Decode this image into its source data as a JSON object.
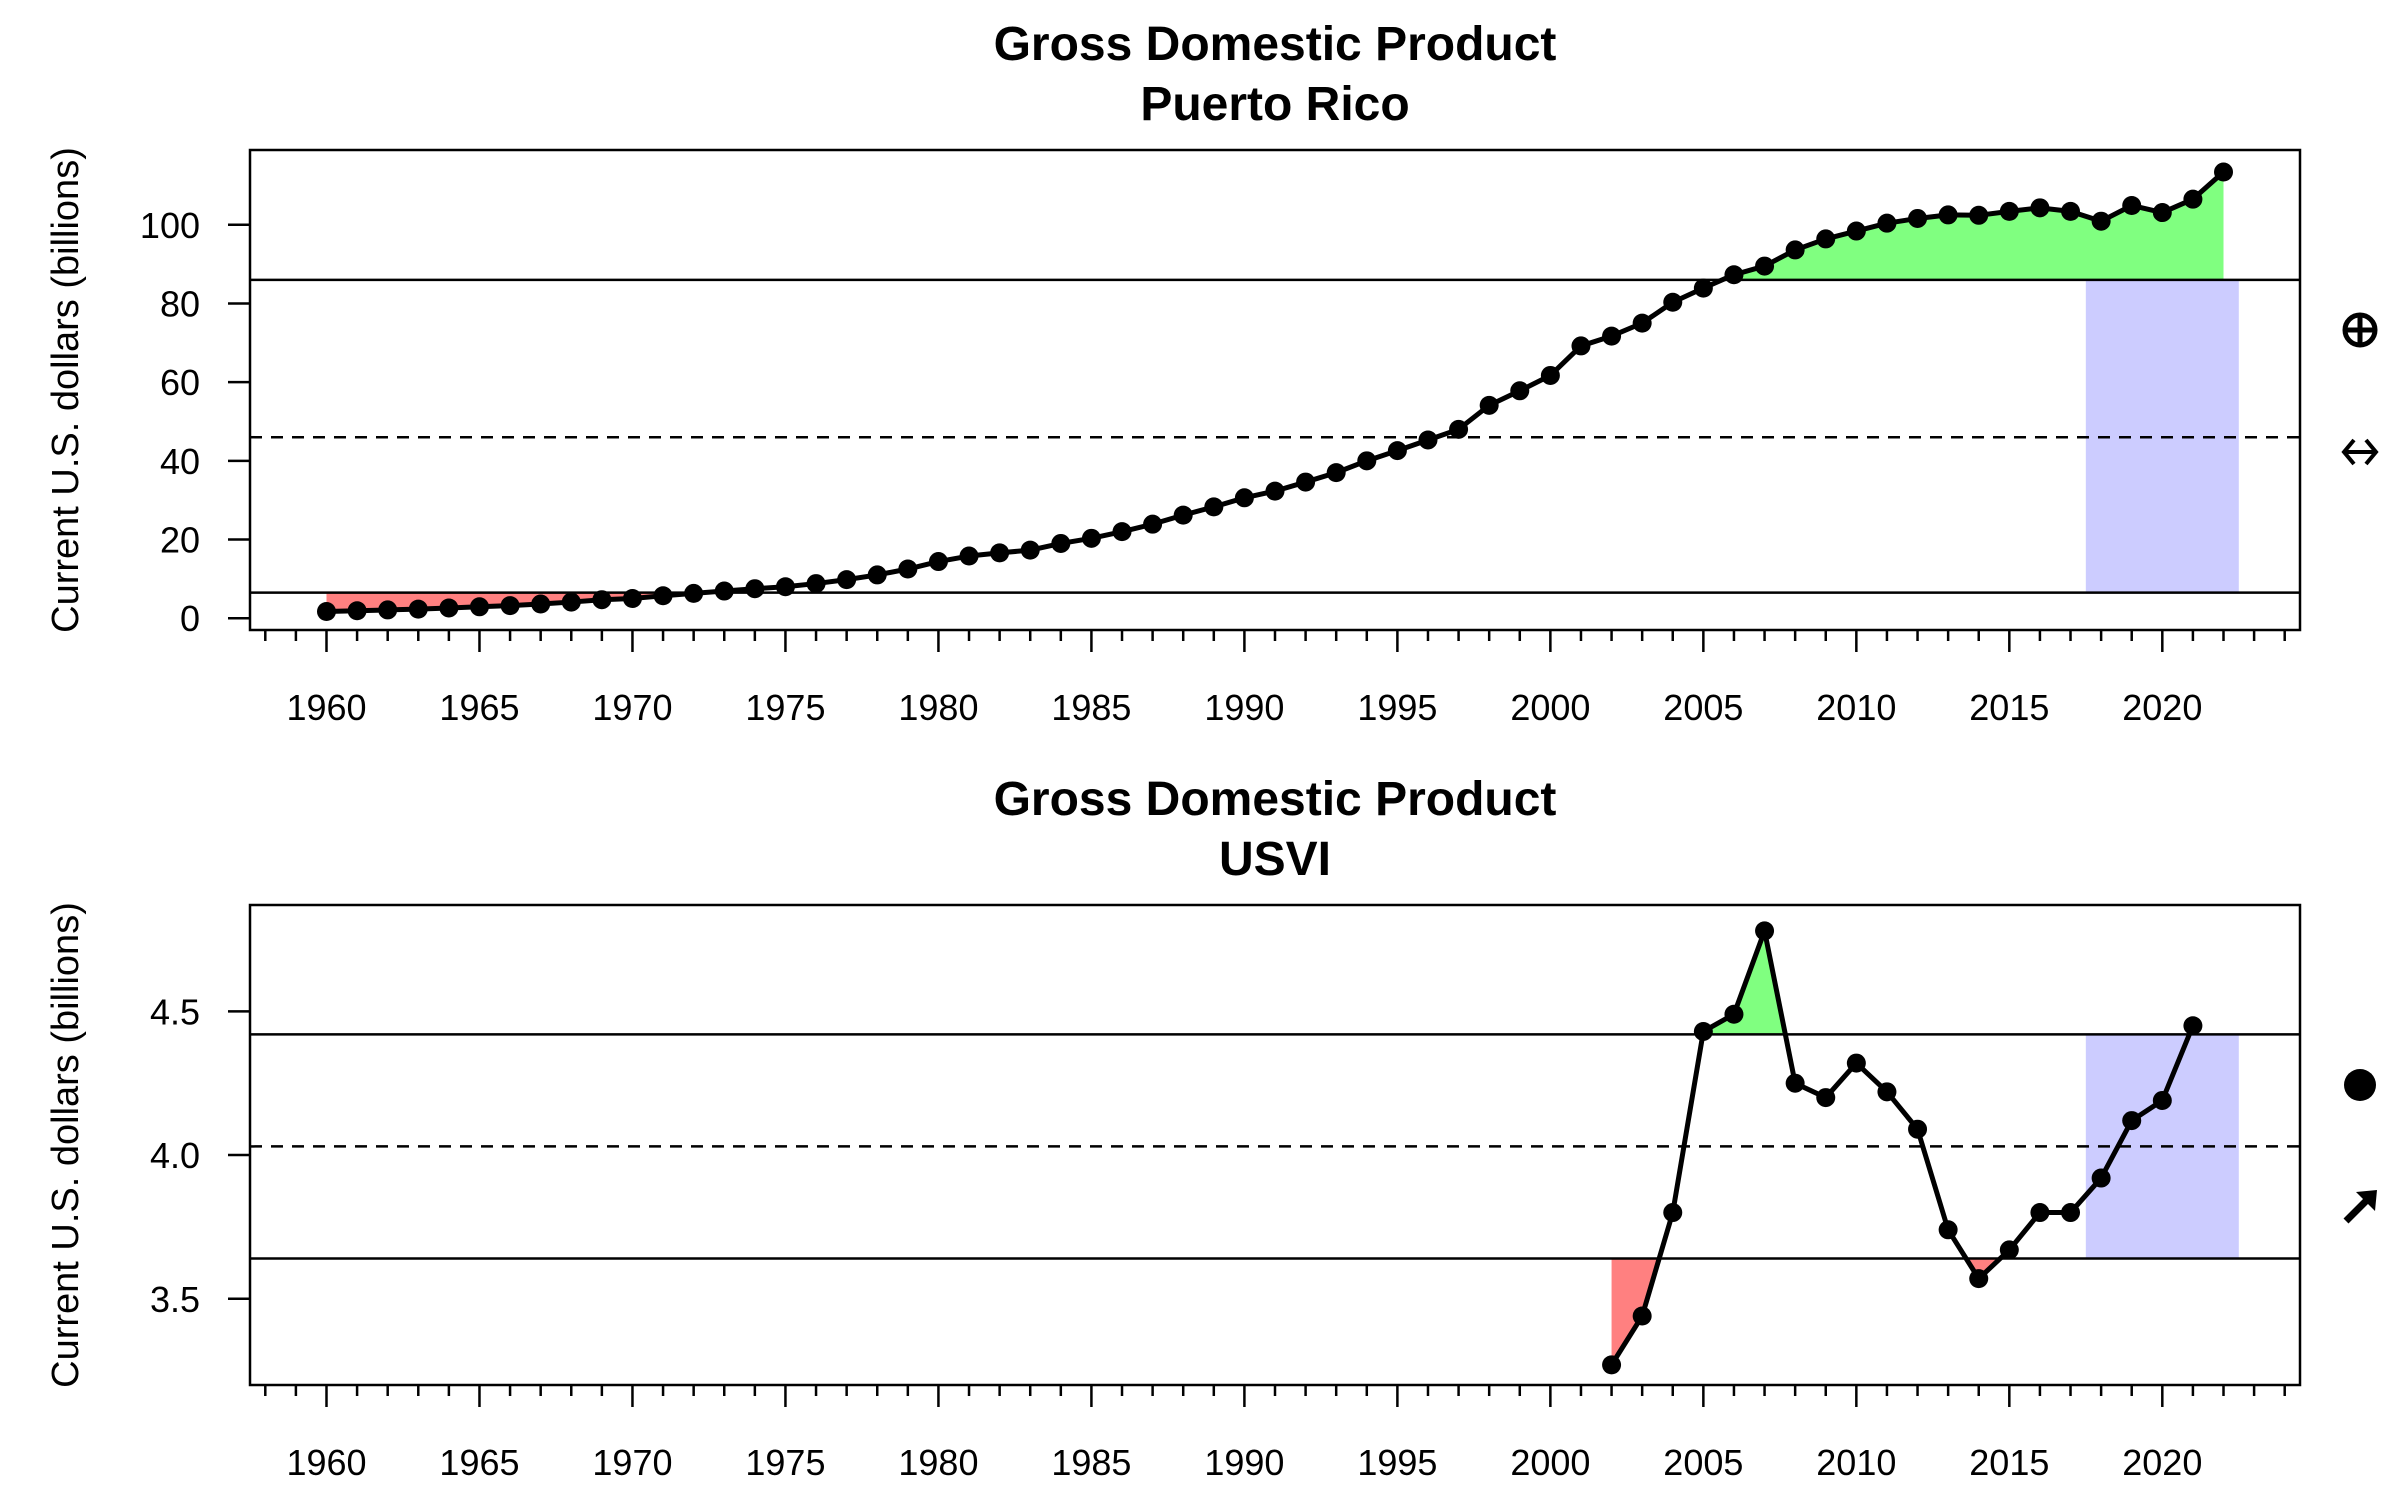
{
  "colors": {
    "below": "#ff8080",
    "above": "#80ff80",
    "recent": "#ccccff",
    "line": "#000000"
  },
  "chart_data": [
    {
      "type": "line",
      "title": "Gross Domestic Product",
      "subtitle": "Puerto Rico",
      "xlabel": "",
      "ylabel": "Current U.S. dollars (billions)",
      "xlim": [
        1957.5,
        2024.5
      ],
      "ylim": [
        -3,
        119
      ],
      "x_ticks": [
        1960,
        1965,
        1970,
        1975,
        1980,
        1985,
        1990,
        1995,
        2000,
        2005,
        2010,
        2015,
        2020
      ],
      "y_ticks": [
        0,
        20,
        40,
        60,
        80,
        100
      ],
      "y_tick_labels": [
        "0",
        "20",
        "40",
        "60",
        "80",
        "100"
      ],
      "grid": false,
      "mean": 46,
      "upper": 86,
      "lower": 6.5,
      "recent_window": [
        2017.5,
        2022.5
      ],
      "trend_symbols": [
        "plus-circle-icon",
        "double-arrow-horizontal-icon"
      ],
      "series": [
        {
          "x": [
            1960,
            1961,
            1962,
            1963,
            1964,
            1965,
            1966,
            1967,
            1968,
            1969,
            1970,
            1971,
            1972,
            1973,
            1974,
            1975,
            1976,
            1977,
            1978,
            1979,
            1980,
            1981,
            1982,
            1983,
            1984,
            1985,
            1986,
            1987,
            1988,
            1989,
            1990,
            1991,
            1992,
            1993,
            1994,
            1995,
            1996,
            1997,
            1998,
            1999,
            2000,
            2001,
            2002,
            2003,
            2004,
            2005,
            2006,
            2007,
            2008,
            2009,
            2010,
            2011,
            2012,
            2013,
            2014,
            2015,
            2016,
            2017,
            2018,
            2019,
            2020,
            2021,
            2022
          ],
          "values": [
            1.7,
            1.9,
            2.1,
            2.3,
            2.6,
            2.9,
            3.2,
            3.6,
            4.1,
            4.7,
            5.0,
            5.7,
            6.3,
            6.9,
            7.5,
            8.0,
            8.8,
            9.8,
            11.0,
            12.5,
            14.4,
            15.8,
            16.6,
            17.3,
            19.0,
            20.3,
            22.0,
            23.9,
            26.2,
            28.3,
            30.6,
            32.3,
            34.6,
            37.0,
            40.0,
            42.6,
            45.3,
            48.0,
            54.1,
            57.8,
            61.7,
            69.2,
            71.7,
            75.0,
            80.3,
            83.9,
            87.3,
            89.5,
            93.6,
            96.4,
            98.4,
            100.4,
            101.6,
            102.5,
            102.4,
            103.4,
            104.3,
            103.4,
            100.9,
            104.9,
            103.1,
            106.5,
            113.4
          ]
        }
      ]
    },
    {
      "type": "line",
      "title": "Gross Domestic Product",
      "subtitle": "USVI",
      "xlabel": "",
      "ylabel": "Current U.S. dollars (billions)",
      "xlim": [
        1957.5,
        2024.5
      ],
      "ylim": [
        3.2,
        4.87
      ],
      "x_ticks": [
        1960,
        1965,
        1970,
        1975,
        1980,
        1985,
        1990,
        1995,
        2000,
        2005,
        2010,
        2015,
        2020
      ],
      "y_ticks": [
        3.5,
        4.0,
        4.5
      ],
      "y_tick_labels": [
        "3.5",
        "4.0",
        "4.5"
      ],
      "grid": false,
      "mean": 4.03,
      "upper": 4.42,
      "lower": 3.64,
      "recent_window": [
        2017.5,
        2022.5
      ],
      "trend_symbols": [
        "filled-circle-icon",
        "arrow-up-right-icon"
      ],
      "series": [
        {
          "x": [
            2002,
            2003,
            2004,
            2005,
            2006,
            2007,
            2008,
            2009,
            2010,
            2011,
            2012,
            2013,
            2014,
            2015,
            2016,
            2017,
            2018,
            2019,
            2020,
            2021
          ],
          "values": [
            3.27,
            3.44,
            3.8,
            4.43,
            4.49,
            4.78,
            4.25,
            4.2,
            4.32,
            4.22,
            4.09,
            3.74,
            3.57,
            3.67,
            3.8,
            3.8,
            3.92,
            4.12,
            4.19,
            4.45
          ]
        }
      ]
    }
  ]
}
